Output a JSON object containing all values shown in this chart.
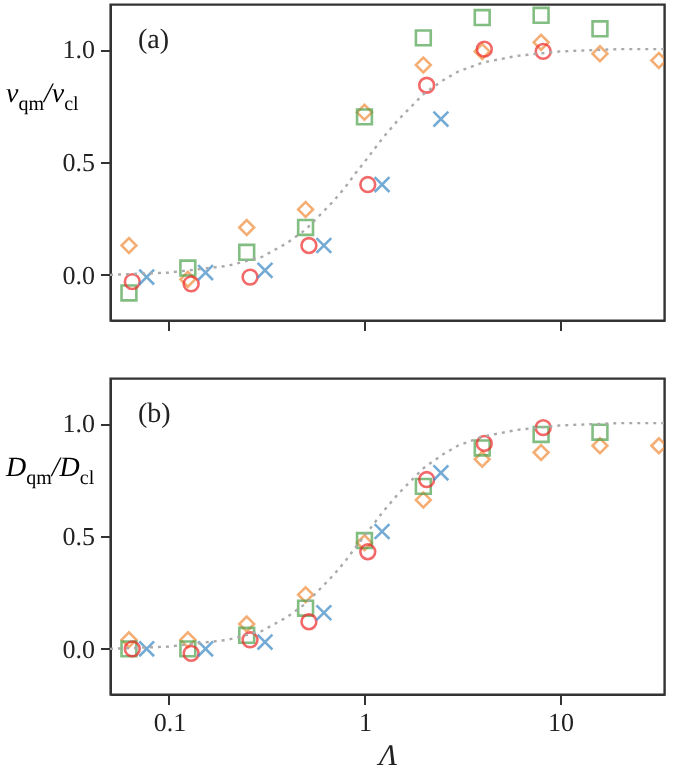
{
  "chart_data": [
    {
      "type": "scatter",
      "annotations": [
        "(a)"
      ],
      "ylabel": "v$_{qm}$/v$_{cl}$",
      "log": "x",
      "xlim": [
        0.05,
        34
      ],
      "xticks": [
        0.1,
        1,
        10
      ],
      "ylim": [
        -0.2,
        1.2
      ],
      "yticks": [
        {
          "value": 0,
          "label": "0.0"
        },
        {
          "value": 0.5,
          "label": "0.5"
        },
        {
          "value": 1,
          "label": "1.0"
        }
      ],
      "tick_labels": "y",
      "series": [
        {
          "color": "#f08c3a",
          "marker": "diamond",
          "x": [
            0.0625,
            0.125,
            0.25,
            0.5,
            1,
            2,
            4,
            8,
            16,
            32
          ],
          "values": [
            0.13,
            -0.02,
            0.21,
            0.29,
            0.72,
            0.93,
            0.99,
            1.03,
            0.98,
            0.95
          ]
        },
        {
          "color": "#4ea24e",
          "marker": "square",
          "x": [
            0.0625,
            0.125,
            0.25,
            0.5,
            1,
            2,
            4,
            8,
            16
          ],
          "values": [
            -0.08,
            0.03,
            0.1,
            0.21,
            0.7,
            1.05,
            1.14,
            1.15,
            1.09
          ]
        },
        {
          "color": "#ee2a2a",
          "marker": "circle",
          "x": [
            0.065,
            0.13,
            0.26,
            0.52,
            1.04,
            2.08,
            4.1,
            8.2
          ],
          "values": [
            -0.03,
            -0.04,
            -0.01,
            0.13,
            0.4,
            0.84,
            1.0,
            0.99
          ]
        },
        {
          "color": "#3a88c4",
          "marker": "cross",
          "x": [
            0.077,
            0.154,
            0.31,
            0.62,
            1.23,
            2.46
          ],
          "values": [
            -0.01,
            0.01,
            0.02,
            0.13,
            0.4,
            0.69
          ]
        },
        {
          "type": "line",
          "color": "#aaaaaa",
          "line_style": "dotted",
          "marker": "none",
          "x": [
            0.05,
            0.1,
            0.2,
            0.3,
            0.4,
            0.5,
            0.6,
            0.7,
            0.8,
            0.9,
            1,
            1.25,
            1.5,
            2,
            2.5,
            3,
            4,
            6,
            10,
            20,
            34
          ],
          "values": [
            0.0,
            0.01,
            0.04,
            0.08,
            0.14,
            0.2,
            0.27,
            0.33,
            0.39,
            0.45,
            0.5,
            0.61,
            0.69,
            0.8,
            0.86,
            0.9,
            0.94,
            0.97,
            0.99,
            1.0,
            1.0
          ]
        }
      ]
    },
    {
      "type": "scatter",
      "annotations": [
        "(b)"
      ],
      "xlabel": "Λ",
      "ylabel": "D$_{qm}$/D$_{cl}$",
      "log": "x",
      "xlim": [
        0.05,
        34
      ],
      "xticks": [
        0.1,
        1,
        10
      ],
      "ylim": [
        -0.2,
        1.2
      ],
      "yticks": [
        {
          "value": 0,
          "label": "0.0"
        },
        {
          "value": 0.5,
          "label": "0.5"
        },
        {
          "value": 1,
          "label": "1.0"
        }
      ],
      "series": [
        {
          "color": "#f08c3a",
          "marker": "diamond",
          "x": [
            0.0625,
            0.125,
            0.25,
            0.5,
            1,
            2,
            4,
            8,
            16,
            32
          ],
          "values": [
            0.04,
            0.04,
            0.11,
            0.24,
            0.47,
            0.66,
            0.84,
            0.87,
            0.9,
            0.9
          ]
        },
        {
          "color": "#4ea24e",
          "marker": "square",
          "x": [
            0.0625,
            0.125,
            0.25,
            0.5,
            1,
            2,
            4,
            8,
            16
          ],
          "values": [
            0.0,
            0.0,
            0.06,
            0.18,
            0.48,
            0.72,
            0.89,
            0.95,
            0.96
          ]
        },
        {
          "color": "#ee2a2a",
          "marker": "circle",
          "x": [
            0.065,
            0.13,
            0.26,
            0.52,
            1.04,
            2.08,
            4.1,
            8.2
          ],
          "values": [
            0.0,
            -0.02,
            0.04,
            0.12,
            0.43,
            0.75,
            0.91,
            0.98
          ]
        },
        {
          "color": "#3a88c4",
          "marker": "cross",
          "x": [
            0.077,
            0.154,
            0.31,
            0.62,
            1.23,
            2.46
          ],
          "values": [
            0.0,
            0.0,
            0.03,
            0.16,
            0.52,
            0.78
          ]
        },
        {
          "type": "line",
          "color": "#aaaaaa",
          "line_style": "dotted",
          "marker": "none",
          "x": [
            0.05,
            0.1,
            0.2,
            0.3,
            0.4,
            0.5,
            0.6,
            0.7,
            0.8,
            0.9,
            1,
            1.25,
            1.5,
            2,
            2.5,
            3,
            4,
            6,
            10,
            20,
            34
          ],
          "values": [
            0.0,
            0.01,
            0.04,
            0.08,
            0.14,
            0.2,
            0.27,
            0.33,
            0.39,
            0.45,
            0.5,
            0.61,
            0.69,
            0.8,
            0.86,
            0.9,
            0.94,
            0.97,
            0.99,
            1.0,
            1.0
          ]
        }
      ]
    }
  ]
}
